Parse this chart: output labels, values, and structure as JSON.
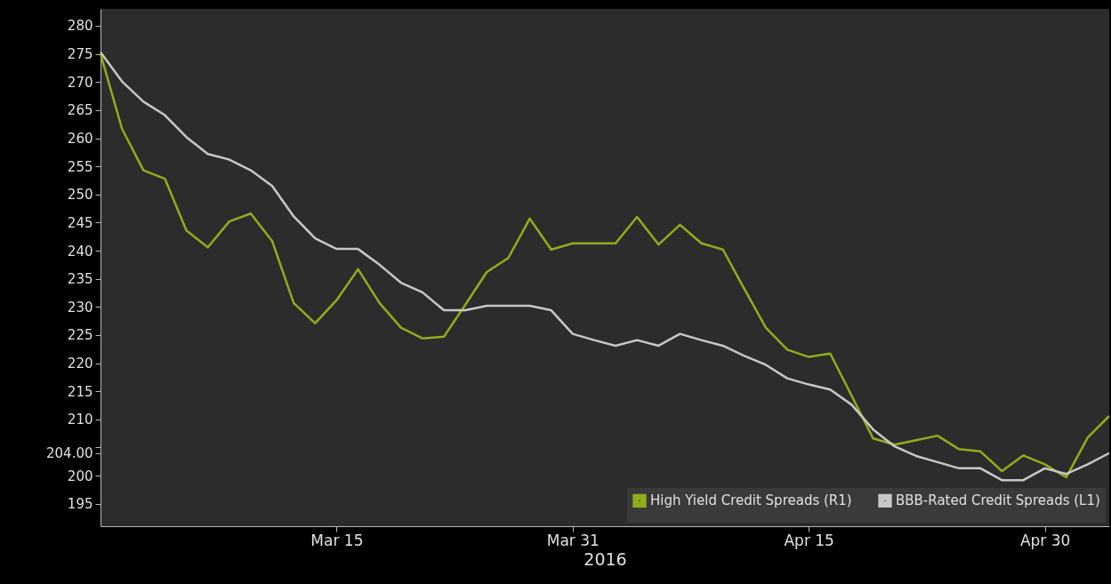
{
  "chart_data": {
    "type": "line",
    "categories": [
      null,
      null,
      null,
      null,
      null,
      null,
      null,
      null,
      null,
      null,
      null,
      "Mar 15",
      null,
      null,
      null,
      null,
      null,
      null,
      null,
      null,
      null,
      null,
      "Mar 31",
      null,
      null,
      null,
      null,
      null,
      null,
      null,
      null,
      null,
      null,
      "Apr 15",
      null,
      null,
      null,
      null,
      null,
      null,
      null,
      null,
      null,
      null,
      "Apr 30",
      null,
      null,
      null
    ],
    "xlabel": "2016",
    "series": [
      {
        "name": "High Yield Credit Spreads (R1)",
        "color": "#8fae1b",
        "values": [
          275,
          261.7,
          254.3,
          252.8,
          243.6,
          240.6,
          245.2,
          246.6,
          241.7,
          230.7,
          227.1,
          231.2,
          236.7,
          230.7,
          226.3,
          224.4,
          224.7,
          230.4,
          236.2,
          238.7,
          245.7,
          240.2,
          241.3,
          241.3,
          241.3,
          246.0,
          241.1,
          244.6,
          241.3,
          240.2,
          233.2,
          226.3,
          222.4,
          221.1,
          221.7,
          214.2,
          206.6,
          205.5,
          206.3,
          207.1,
          204.7,
          204.3,
          200.8,
          203.6,
          202.0,
          199.7,
          206.8,
          210.6
        ]
      },
      {
        "name": "BBB-Rated Credit Spreads (L1)",
        "color": "#c8c8c8",
        "values": [
          275.3,
          270.1,
          266.5,
          264.1,
          260.2,
          257.2,
          256.2,
          254.3,
          251.5,
          246.1,
          242.2,
          240.3,
          240.3,
          237.5,
          234.3,
          232.6,
          229.4,
          229.4,
          230.2,
          230.2,
          230.2,
          229.4,
          225.2,
          224.1,
          223.1,
          224.1,
          223.1,
          225.2,
          224.1,
          223.1,
          221.3,
          219.7,
          217.3,
          216.2,
          215.3,
          212.6,
          208.2,
          205.2,
          203.5,
          202.4,
          201.3,
          201.3,
          199.2,
          199.2,
          201.3,
          200.3,
          202.0,
          204.0
        ]
      }
    ],
    "ylim": [
      191,
      283
    ],
    "yticks": [
      195,
      200,
      {
        "value": 204,
        "label": "204.00"
      },
      {
        "value": 205,
        "label": null
      },
      210,
      215,
      220,
      225,
      230,
      235,
      240,
      245,
      250,
      255,
      260,
      265,
      270,
      275,
      280
    ],
    "legend": "bottom right",
    "grid": false,
    "marker": "none",
    "line_style": "solid"
  }
}
